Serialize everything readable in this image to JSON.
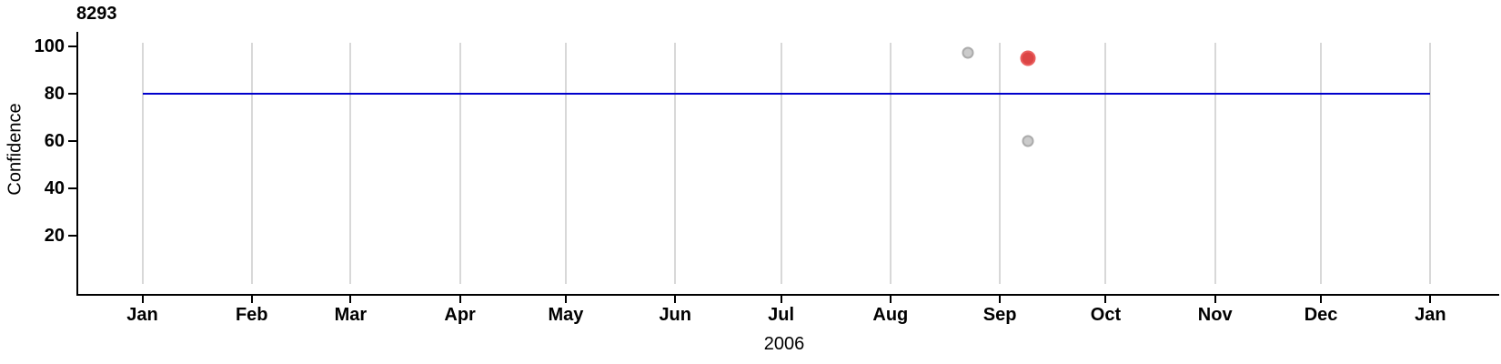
{
  "chart_data": {
    "type": "scatter",
    "title": "8293",
    "ylabel": "Confidence",
    "xlabel": "2006",
    "x_axis": {
      "tick_labels": [
        "Jan",
        "Feb",
        "Mar",
        "Apr",
        "May",
        "Jun",
        "Jul",
        "Aug",
        "Sep",
        "Oct",
        "Nov",
        "Dec",
        "Jan"
      ],
      "tick_days": [
        0,
        31,
        59,
        90,
        120,
        151,
        181,
        212,
        243,
        273,
        304,
        334,
        365
      ],
      "range_days": [
        0,
        365
      ],
      "grid": "vertical-monthly"
    },
    "y_axis": {
      "tick_values": [
        100,
        80,
        60,
        40,
        20
      ],
      "range": [
        0,
        107
      ]
    },
    "reference_line": {
      "value": 80,
      "span_days": [
        0,
        365
      ],
      "color": "#0000CC"
    },
    "points": [
      {
        "day": 234,
        "approx_date": "Aug 22",
        "value": 97,
        "series": "other-detection",
        "style": "gray",
        "diameter": 13
      },
      {
        "day": 251,
        "approx_date": "Sep 9",
        "value": 95,
        "series": "selected-detection",
        "style": "red",
        "diameter": 17
      },
      {
        "day": 251,
        "approx_date": "Sep 9",
        "value": 60,
        "series": "other-detection",
        "style": "gray",
        "diameter": 13
      }
    ],
    "colors": {
      "gridline": "#D8D8D8",
      "axis": "#000000",
      "reference_line": "#0000CC",
      "point_red_fill": "#DC4545",
      "point_red_stroke": "#EA5E5E",
      "point_gray_fill": "#CBCBCB",
      "point_gray_stroke": "#ABABAB"
    }
  }
}
